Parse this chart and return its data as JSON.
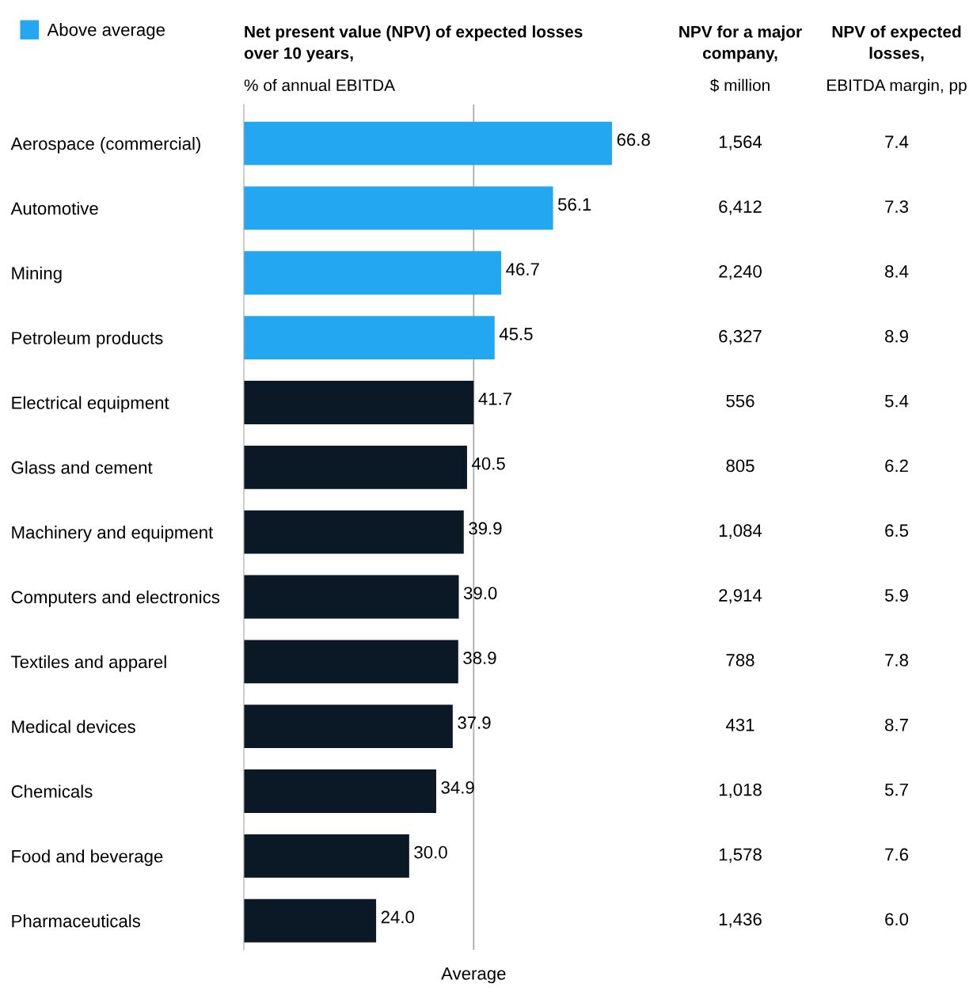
{
  "chart_data": [
    {
      "type": "bar",
      "orientation": "horizontal",
      "stacked": true,
      "title": "Net present value (NPV) of expected losses over 10 years,",
      "subtitle": "% of annual EBITDA",
      "categories": [
        "Aerospace (commercial)",
        "Automotive",
        "Mining",
        "Petroleum products",
        "Electrical equipment",
        "Glass and cement",
        "Machinery and equipment",
        "Computers and electronics",
        "Textiles and apparel",
        "Medical devices",
        "Chemicals",
        "Food and beverage",
        "Pharmaceuticals"
      ],
      "series": [
        {
          "name": "Above average",
          "color": "#22a7f0",
          "values": [
            66.8,
            56.1,
            46.7,
            45.5,
            null,
            null,
            null,
            null,
            null,
            null,
            null,
            null,
            null
          ],
          "value_labels": [
            "66.8",
            "56.1",
            "46.7",
            "45.5",
            null,
            null,
            null,
            null,
            null,
            null,
            null,
            null,
            null
          ]
        },
        {
          "color": "#0b1926",
          "values": [
            null,
            null,
            null,
            null,
            41.7,
            40.5,
            39.9,
            39.0,
            38.9,
            37.9,
            34.9,
            30.0,
            24.0
          ],
          "value_labels": [
            null,
            null,
            null,
            null,
            "41.7",
            "40.5",
            "39.9",
            "39.0",
            "38.9",
            "37.9",
            "34.9",
            "30.0",
            "24.0"
          ]
        }
      ],
      "ref_lines": [
        {
          "axis": "x",
          "value": 41.7,
          "label": "Average",
          "color": "#a6a6a6"
        }
      ],
      "legend": "top left",
      "grid": false
    },
    {
      "type": "other",
      "title": "NPV for a major company,",
      "subtitle": "$ million",
      "value_labels": [
        "1,564",
        "6,412",
        "2,240",
        "6,327",
        "556",
        "805",
        "1,084",
        "2,914",
        "788",
        "431",
        "1,018",
        "1,578",
        "1,436"
      ]
    },
    {
      "type": "other",
      "title": "NPV of expected losses,",
      "subtitle": "EBITDA margin, pp",
      "value_labels": [
        "7.4",
        "7.3",
        "8.4",
        "8.9",
        "5.4",
        "6.2",
        "6.5",
        "5.9",
        "7.8",
        "8.7",
        "5.7",
        "7.6",
        "6.0"
      ]
    }
  ]
}
